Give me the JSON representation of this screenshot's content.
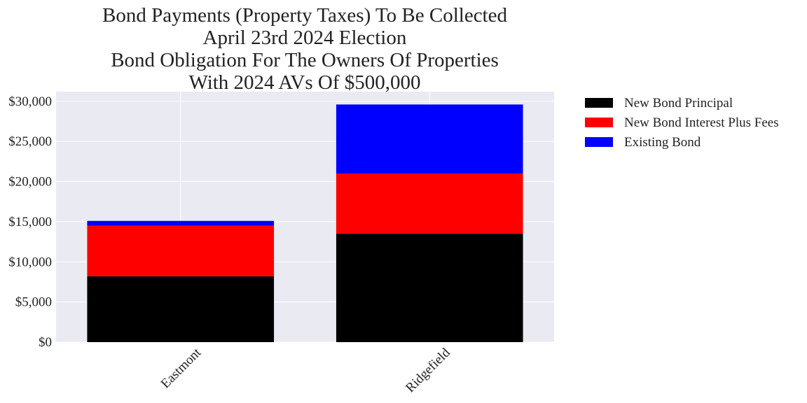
{
  "chart_data": {
    "type": "bar",
    "stacked": true,
    "title_lines": [
      "Bond Payments (Property Taxes) To Be Collected",
      "April 23rd 2024 Election",
      "Bond Obligation For The Owners Of Properties",
      "With 2024 AVs Of $500,000"
    ],
    "xlabel": "",
    "ylabel": "",
    "categories": [
      "Eastmont",
      "Ridgefield"
    ],
    "series": [
      {
        "name": "New Bond Principal",
        "color": "#000000",
        "values": [
          8200,
          13500
        ]
      },
      {
        "name": "New Bond Interest Plus Fees",
        "color": "#ff0000",
        "values": [
          6300,
          7500
        ]
      },
      {
        "name": "Existing Bond",
        "color": "#0000ff",
        "values": [
          600,
          8600
        ]
      }
    ],
    "ylim": [
      0,
      31200
    ],
    "yticks": [
      0,
      5000,
      10000,
      15000,
      20000,
      25000,
      30000
    ],
    "ytick_labels": [
      "$0",
      "$5,000",
      "$10,000",
      "$15,000",
      "$20,000",
      "$25,000",
      "$30,000"
    ],
    "grid": true,
    "legend_position": "outside-right-top",
    "plot_background": "#eaeaf2",
    "grid_color": "#ffffff"
  }
}
